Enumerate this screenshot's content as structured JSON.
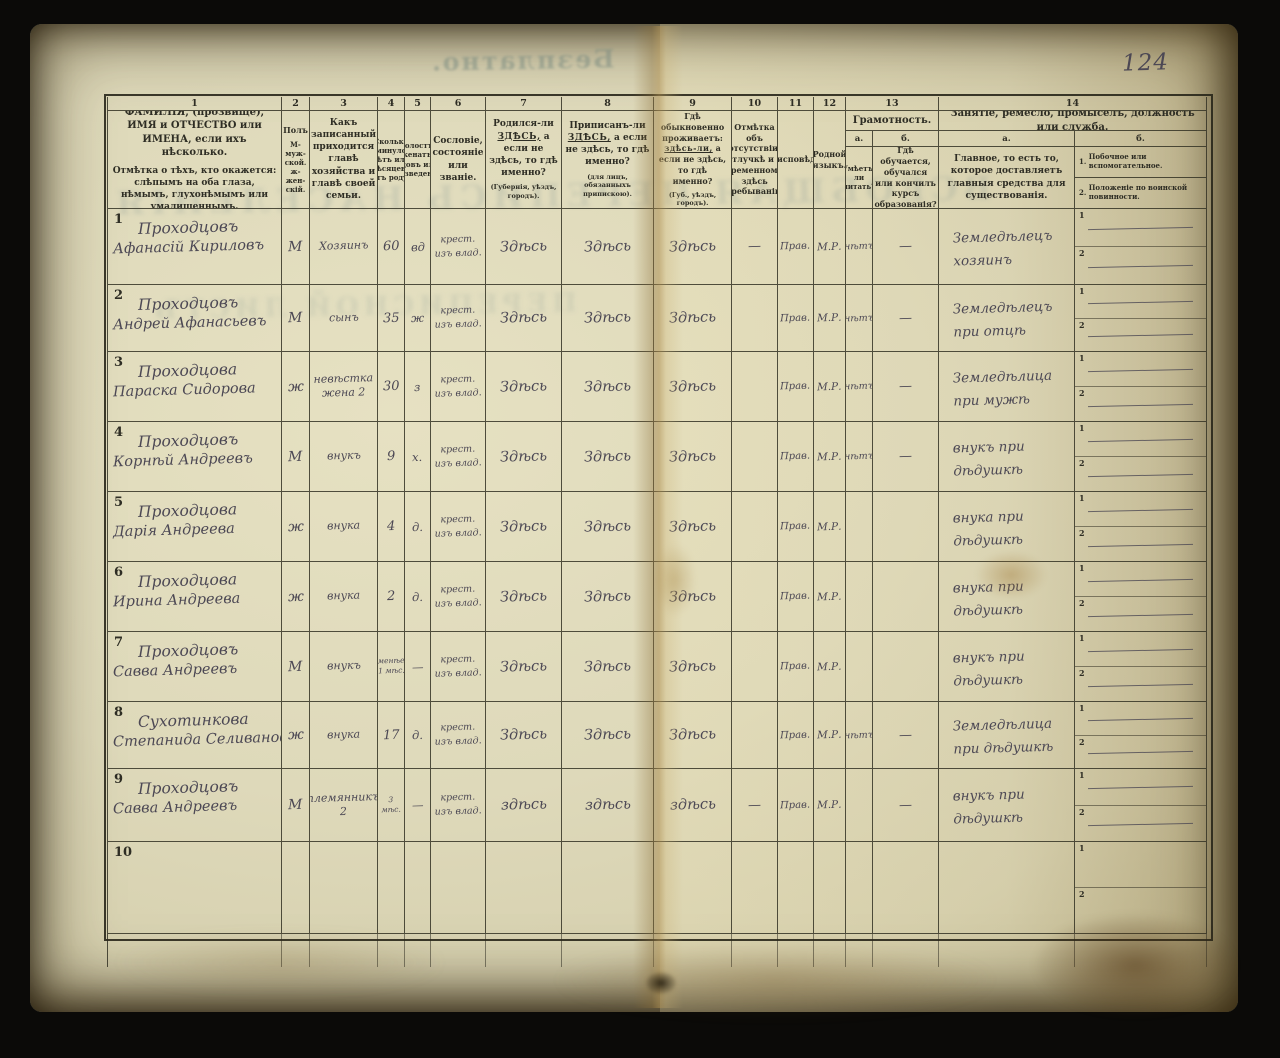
{
  "page": {
    "number": "124"
  },
  "ghosts": {
    "top": "Безплатно.",
    "big": "ВСЕОБЩАЯ ПЕРЕПИСЬ НАСЕЛЕНІЯ",
    "mid": "ПЕРЕПИСНОЙ ЛИСТЪ"
  },
  "colors": {
    "paper": "#ded9ba",
    "print_ink": "#2e2d24",
    "hand_ink": "#4c4854",
    "fold": "#ad8e50"
  },
  "header": {
    "numbers": [
      "1",
      "2",
      "3",
      "4",
      "5",
      "6",
      "7",
      "8",
      "9",
      "10",
      "11",
      "12",
      "13",
      "14"
    ],
    "c1a": "ФАМИЛІЯ, (прозвище), ИМЯ и ОТЧЕСТВО или ИМЕНА, если ихъ нѣсколько.",
    "c1b": "Отмѣтка о тѣхъ, кто окажется: слѣпымъ на оба глаза, нѣмымъ, глухонѣмымъ или умалишеннымъ.",
    "c2a": "Полъ",
    "c2b": "М-муж- ской.",
    "c2c": "ж-жен- скій.",
    "c3": "Какъ записанный приходится главѣ хозяйства и главѣ своей семьи.",
    "c4": "Сколько минуло лѣтъ или мѣсяцевъ отъ роду.",
    "c5": "Холостъ, женатъ, вдовъ или разведенъ.",
    "c6": "Сословіе, состояніе или званіе.",
    "c7": {
      "pre": "Родился-ли ",
      "em": "ЗДѢСЬ,",
      "post": " а если не здѣсь, то гдѣ именно?",
      "note": "(Губернія, уѣздъ, городъ)."
    },
    "c8": {
      "pre": "Приписанъ-ли ",
      "em": "ЗДѢСЬ,",
      "post": " а если не здѣсь, то гдѣ именно?",
      "note": "(для лицъ, обязанныхъ припискою)."
    },
    "c9": {
      "pre": "Гдѣ обыкновенно проживаетъ: ",
      "em": "здѣсь-ли,",
      "post": " а если не здѣсь, то гдѣ именно?",
      "note": "(Губ., уѣздъ, городъ)."
    },
    "c10": "Отмѣтка объ отсутствіи, отлучкѣ и о временномъ здѣсь пребываніи.",
    "c11": "Вѣроисповѣданіе.",
    "c12": "Родной языкъ.",
    "g13": "Грамотность.",
    "g13a": "а.",
    "g13b": "б.",
    "c13a": "Умѣетъ-ли читать?",
    "c13b": "Гдѣ обучается, обучался или кончилъ курсъ образованія?",
    "g14": "Занятіе, ремесло, промыселъ, должность или служба.",
    "g14a": "а.",
    "g14b": "б.",
    "c14a": "Главное, то есть то, которое доставляетъ главныя средства для существованія.",
    "c14b1": "1.",
    "c14b1t": "Побочное или вспомогательное.",
    "c14b2": "2.",
    "c14b2t": "Положеніе по воинской повинности."
  },
  "rows": [
    {
      "num": "1",
      "surname": "Проходцовъ",
      "given": "Афанасій Кириловъ",
      "sex": "М",
      "relation": "Хозяинъ",
      "age": "60",
      "marital": "вд",
      "estate": "крест. изъ влад.",
      "born": "Здѣсь",
      "registered": "Здѣсь",
      "resides": "Здѣсь",
      "absence": "—",
      "religion": "Прав.",
      "language": "М.Р.",
      "reads": "нѣтъ",
      "educated": "—",
      "occupation": "Земледѣлецъ хозяинъ",
      "mark1": "—",
      "mark2": "—"
    },
    {
      "num": "2",
      "surname": "Проходцовъ",
      "given": "Андрей Афанасьевъ",
      "sex": "М",
      "relation": "сынъ",
      "age": "35",
      "marital": "ж",
      "estate": "крест. изъ влад.",
      "born": "Здѣсь",
      "registered": "Здѣсь",
      "resides": "Здѣсь",
      "absence": "",
      "religion": "Прав.",
      "language": "М.Р.",
      "reads": "нѣтъ",
      "educated": "—",
      "occupation": "Земледѣлецъ при отцѣ",
      "mark1": "—",
      "mark2": "—"
    },
    {
      "num": "3",
      "surname": "Проходцова",
      "given": "Параска Сидорова",
      "sex": "ж",
      "relation": "невѣстка жена 2",
      "age": "30",
      "marital": "з",
      "estate": "крест. изъ влад.",
      "born": "Здѣсь",
      "registered": "Здѣсь",
      "resides": "Здѣсь",
      "absence": "",
      "religion": "Прав.",
      "language": "М.Р.",
      "reads": "нѣтъ",
      "educated": "—",
      "occupation": "Земледѣлица при мужѣ",
      "mark1": "—",
      "mark2": "—"
    },
    {
      "num": "4",
      "surname": "Проходцовъ",
      "given": "Корнѣй Андреевъ",
      "sex": "М",
      "relation": "внукъ",
      "age": "9",
      "marital": "х.",
      "estate": "крест. изъ влад.",
      "born": "Здѣсь",
      "registered": "Здѣсь",
      "resides": "Здѣсь",
      "absence": "",
      "religion": "Прав.",
      "language": "М.Р.",
      "reads": "нѣтъ",
      "educated": "—",
      "occupation": "внукъ при дѣдушкѣ",
      "mark1": "—",
      "mark2": "—"
    },
    {
      "num": "5",
      "surname": "Проходцова",
      "given": "Дарія Андреева",
      "sex": "ж",
      "relation": "внука",
      "age": "4",
      "marital": "д.",
      "estate": "крест. изъ влад.",
      "born": "Здѣсь",
      "registered": "Здѣсь",
      "resides": "Здѣсь",
      "absence": "",
      "religion": "Прав.",
      "language": "М.Р.",
      "reads": "",
      "educated": "",
      "occupation": "внука при дѣдушкѣ",
      "mark1": "—",
      "mark2": "—"
    },
    {
      "num": "6",
      "surname": "Проходцова",
      "given": "Ирина Андреева",
      "sex": "ж",
      "relation": "внука",
      "age": "2",
      "marital": "д.",
      "estate": "крест. изъ влад.",
      "born": "Здѣсь",
      "registered": "Здѣсь",
      "resides": "Здѣсь",
      "absence": "",
      "religion": "Прав.",
      "language": "М.Р.",
      "reads": "",
      "educated": "",
      "occupation": "внука при дѣдушкѣ",
      "mark1": "—",
      "mark2": "—"
    },
    {
      "num": "7",
      "surname": "Проходцовъ",
      "given": "Савва Андреевъ",
      "sex": "М",
      "relation": "внукъ",
      "age": "менѣе 1 мѣс.",
      "marital": "—",
      "estate": "крест. изъ влад.",
      "born": "Здѣсь",
      "registered": "Здѣсь",
      "resides": "Здѣсь",
      "absence": "",
      "religion": "Прав.",
      "language": "М.Р.",
      "reads": "",
      "educated": "",
      "occupation": "внукъ при дѣдушкѣ",
      "mark1": "—",
      "mark2": "—"
    },
    {
      "num": "8",
      "surname": "Сухотинкова",
      "given": "Степанида Селивановна",
      "sex": "ж",
      "relation": "внука",
      "age": "17",
      "marital": "д.",
      "estate": "крест. изъ влад.",
      "born": "Здѣсь",
      "registered": "Здѣсь",
      "resides": "Здѣсь",
      "absence": "",
      "religion": "Прав.",
      "language": "М.Р.",
      "reads": "нѣтъ",
      "educated": "—",
      "occupation": "Земледѣлица при дѣдушкѣ",
      "mark1": "—",
      "mark2": "—"
    },
    {
      "num": "9",
      "surname": "Проходцовъ",
      "given": "Савва Андреевъ",
      "sex": "М",
      "relation": "племянникъ 2",
      "age": "3 мѣс.",
      "marital": "—",
      "estate": "крест. изъ влад.",
      "born": "здѣсь",
      "registered": "здѣсь",
      "resides": "здѣсь",
      "absence": "—",
      "religion": "Прав.",
      "language": "М.Р.",
      "reads": "",
      "educated": "—",
      "occupation": "внукъ при дѣдушкѣ",
      "mark1": "—",
      "mark2": "—"
    },
    {
      "num": "10",
      "surname": "",
      "given": "",
      "sex": "",
      "relation": "",
      "age": "",
      "marital": "",
      "estate": "",
      "born": "",
      "registered": "",
      "resides": "",
      "absence": "",
      "religion": "",
      "language": "",
      "reads": "",
      "educated": "",
      "occupation": "",
      "mark1": "",
      "mark2": ""
    }
  ]
}
